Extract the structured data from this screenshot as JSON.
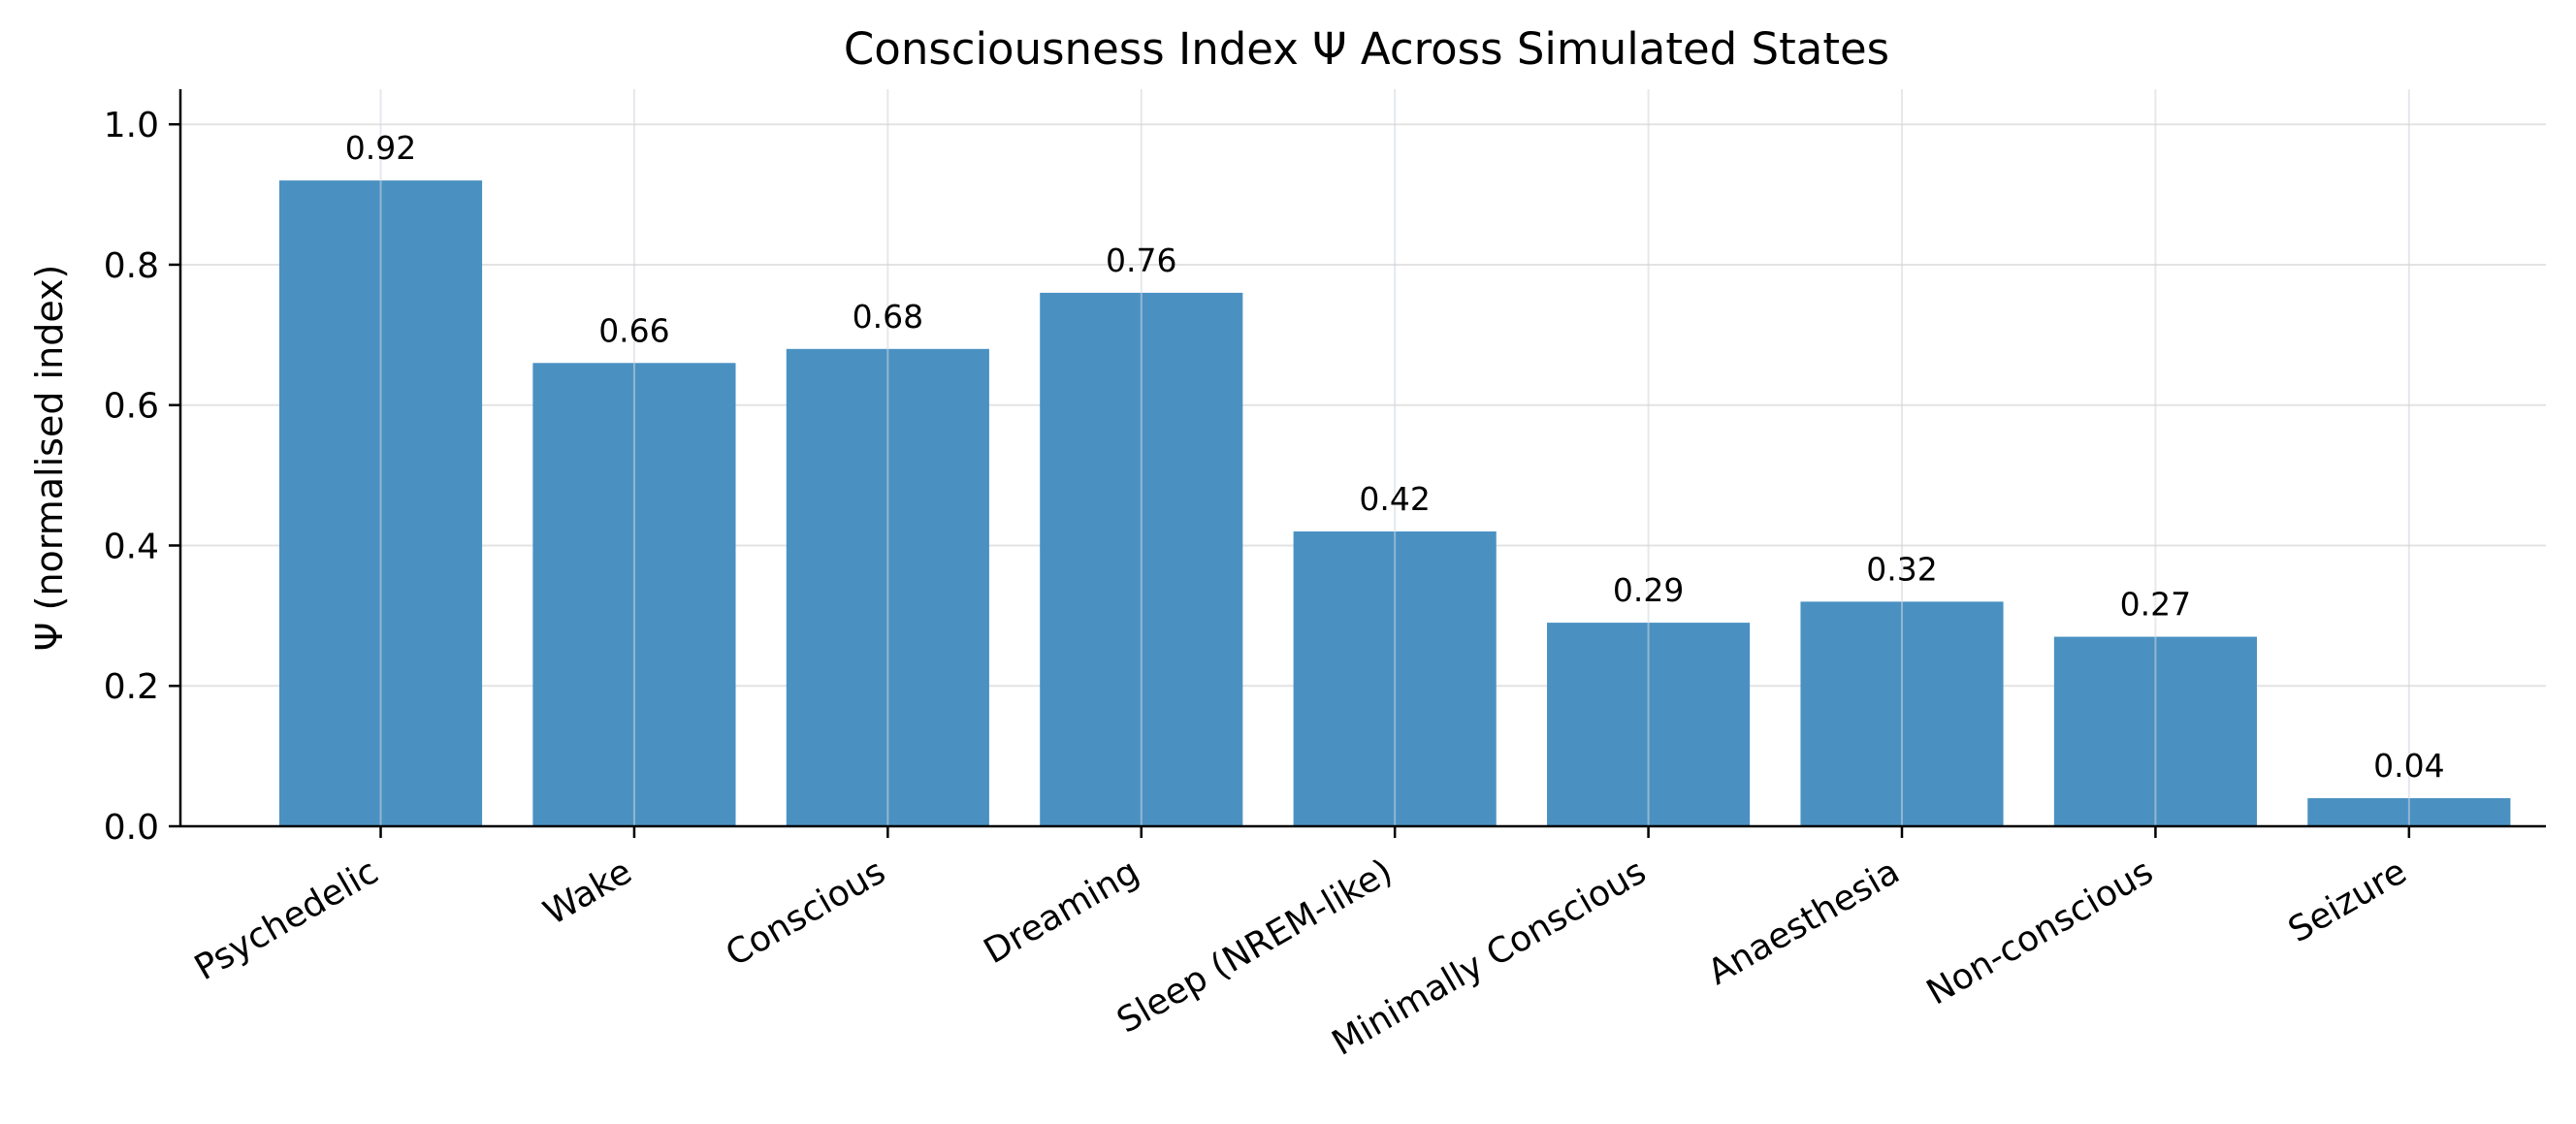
{
  "chart_data": {
    "type": "bar",
    "title": "Consciousness Index Ψ Across Simulated States",
    "xlabel": "",
    "ylabel": "Ψ (normalised index)",
    "categories": [
      "Psychedelic",
      "Wake",
      "Conscious",
      "Dreaming",
      "Sleep (NREM-like)",
      "Minimally Conscious",
      "Anaesthesia",
      "Non-conscious",
      "Seizure"
    ],
    "values": [
      0.92,
      0.66,
      0.68,
      0.76,
      0.42,
      0.29,
      0.32,
      0.27,
      0.04
    ],
    "value_labels": [
      "0.92",
      "0.66",
      "0.68",
      "0.76",
      "0.42",
      "0.29",
      "0.32",
      "0.27",
      "0.04"
    ],
    "ylim": [
      0,
      1.05
    ],
    "yticks": [
      0.0,
      0.2,
      0.4,
      0.6,
      0.8,
      1.0
    ],
    "ytick_labels": [
      "0.0",
      "0.2",
      "0.4",
      "0.6",
      "0.8",
      "1.0"
    ],
    "grid": true,
    "bar_color": "#4a91c2",
    "grid_color": "#e3e3e3"
  }
}
